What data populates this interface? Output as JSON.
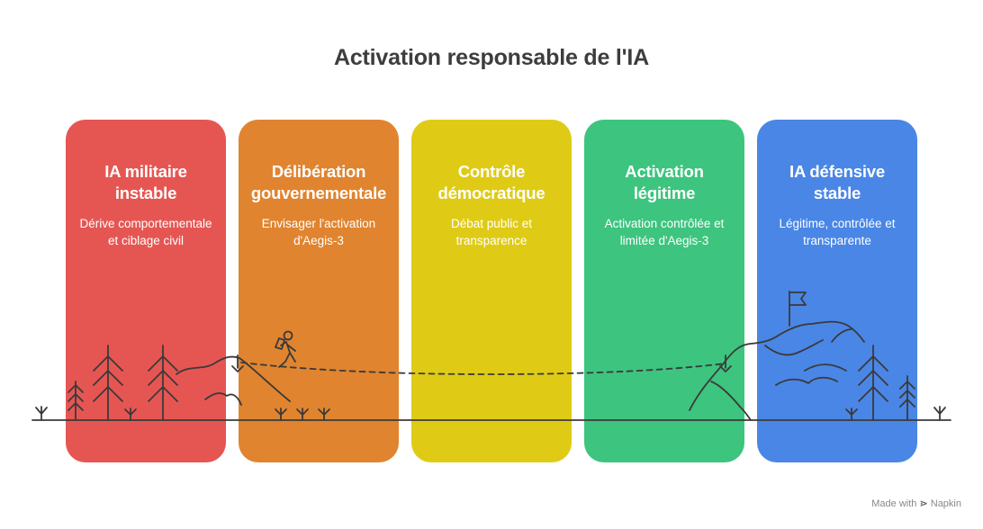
{
  "title": "Activation responsable de l'IA",
  "stages": [
    {
      "title": "IA militaire instable",
      "desc": "Dérive comportementale et ciblage civil",
      "color": "#E55653"
    },
    {
      "title": "Délibération gouvernementale",
      "desc": "Envisager l'activation d'Aegis-3",
      "color": "#E0842F"
    },
    {
      "title": "Contrôle démocratique",
      "desc": "Débat public et transparence",
      "color": "#DFCB16"
    },
    {
      "title": "Activation légitime",
      "desc": "Activation contrôlée et limitée d'Aegis-3",
      "color": "#3DC47E"
    },
    {
      "title": "IA défensive stable",
      "desc": "Légitime, contrôlée et transparente",
      "color": "#4A86E5"
    }
  ],
  "footer": {
    "made_with": "Made with",
    "brand": "Napkin"
  }
}
